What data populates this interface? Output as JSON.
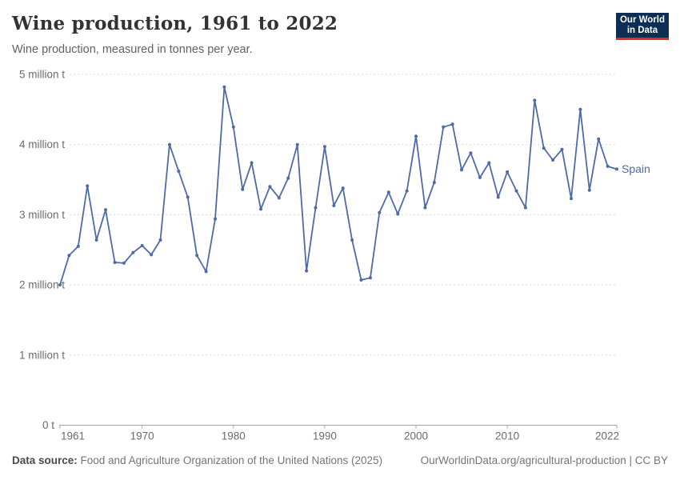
{
  "logo": {
    "line1": "Our World",
    "line2": "in Data",
    "bg_color": "#0c2d54",
    "accent_color": "#dc2e22"
  },
  "footer": {
    "source_label": "Data source:",
    "source_text": " Food and Agriculture Organization of the United Nations (2025)",
    "right_url": "OurWorldinData.org/agricultural-production",
    "right_divider": " | ",
    "right_license": "CC BY"
  },
  "colors": {
    "line": "#4e6ba5",
    "grid": "#dadada",
    "axis": "#a3a3a3",
    "tick_text": "#6b6b6b"
  },
  "chart_data": {
    "type": "line",
    "title": "Wine production, 1961 to 2022",
    "subtitle": "Wine production, measured in tonnes per year.",
    "series_label": "Spain",
    "unit": "tonnes",
    "xlim": [
      1961,
      2022
    ],
    "ylim": [
      0,
      5000000
    ],
    "grid": "dashed-horizontal",
    "legend_position": "end-of-line",
    "yticks": [
      {
        "value": 5,
        "label": "5 million t"
      },
      {
        "value": 4,
        "label": "4 million t"
      },
      {
        "value": 3,
        "label": "3 million t"
      },
      {
        "value": 2,
        "label": "2 million t"
      },
      {
        "value": 1,
        "label": "1 million t"
      },
      {
        "value": 0,
        "label": "0 t"
      }
    ],
    "xticks": [
      1961,
      1970,
      1980,
      1990,
      2000,
      2010,
      2022
    ],
    "x": [
      1961,
      1962,
      1963,
      1964,
      1965,
      1966,
      1967,
      1968,
      1969,
      1970,
      1971,
      1972,
      1973,
      1974,
      1975,
      1976,
      1977,
      1978,
      1979,
      1980,
      1981,
      1982,
      1983,
      1984,
      1985,
      1986,
      1987,
      1988,
      1989,
      1990,
      1991,
      1992,
      1993,
      1994,
      1995,
      1996,
      1997,
      1998,
      1999,
      2000,
      2001,
      2002,
      2003,
      2004,
      2005,
      2006,
      2007,
      2008,
      2009,
      2010,
      2011,
      2012,
      2013,
      2014,
      2015,
      2016,
      2017,
      2018,
      2019,
      2020,
      2021,
      2022
    ],
    "values_million_t": [
      2.0,
      2.42,
      2.55,
      3.41,
      2.64,
      3.07,
      2.32,
      2.31,
      2.46,
      2.56,
      2.43,
      2.64,
      4.0,
      3.62,
      3.25,
      2.42,
      2.19,
      2.94,
      4.82,
      4.25,
      3.36,
      3.74,
      3.08,
      3.4,
      3.24,
      3.52,
      4.0,
      2.2,
      3.1,
      3.97,
      3.13,
      3.38,
      2.64,
      2.07,
      2.1,
      3.03,
      3.32,
      3.01,
      3.34,
      4.12,
      3.1,
      3.46,
      4.25,
      4.29,
      3.64,
      3.88,
      3.53,
      3.74,
      3.25,
      3.61,
      3.34,
      3.1,
      4.63,
      3.95,
      3.78,
      3.93,
      3.23,
      4.5,
      3.35,
      4.08,
      3.69,
      3.65
    ]
  }
}
